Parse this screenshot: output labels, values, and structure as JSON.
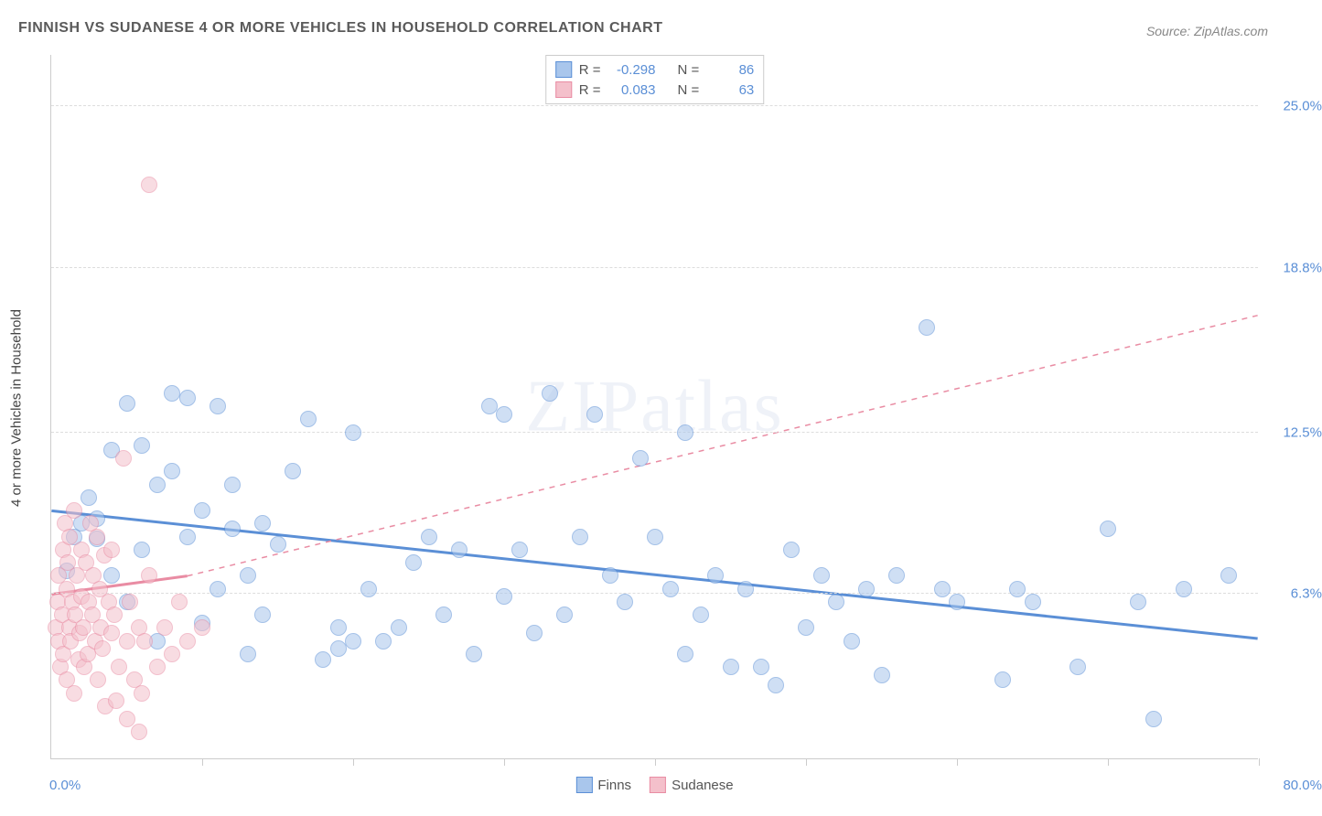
{
  "title": "FINNISH VS SUDANESE 4 OR MORE VEHICLES IN HOUSEHOLD CORRELATION CHART",
  "source": "Source: ZipAtlas.com",
  "watermark": "ZIPatlas",
  "yaxis_label": "4 or more Vehicles in Household",
  "chart": {
    "type": "scatter",
    "background_color": "#ffffff",
    "grid_color": "#dddddd",
    "axis_color": "#cccccc",
    "label_color": "#5b8fd6",
    "text_color": "#444444",
    "xlim": [
      0,
      80
    ],
    "ylim": [
      0,
      27
    ],
    "xtick_positions": [
      0,
      10,
      20,
      30,
      40,
      50,
      60,
      70,
      80
    ],
    "xaxis_min_label": "0.0%",
    "xaxis_max_label": "80.0%",
    "yticks": [
      {
        "value": 6.3,
        "label": "6.3%"
      },
      {
        "value": 12.5,
        "label": "12.5%"
      },
      {
        "value": 18.8,
        "label": "18.8%"
      },
      {
        "value": 25.0,
        "label": "25.0%"
      }
    ],
    "point_radius": 9,
    "point_opacity": 0.55,
    "series": [
      {
        "name": "Finns",
        "fill_color": "#a9c6ec",
        "stroke_color": "#5b8fd6",
        "r_label": "R =",
        "r_value": "-0.298",
        "n_label": "N =",
        "n_value": "86",
        "regression": {
          "solid": {
            "x1": 0,
            "y1": 9.5,
            "x2": 80,
            "y2": 4.6,
            "width": 3
          },
          "dashed": null
        },
        "points": [
          [
            1,
            7.2
          ],
          [
            1.5,
            8.5
          ],
          [
            2,
            9.0
          ],
          [
            2.5,
            10.0
          ],
          [
            3,
            9.2
          ],
          [
            3,
            8.4
          ],
          [
            4,
            7.0
          ],
          [
            4,
            11.8
          ],
          [
            5,
            6.0
          ],
          [
            5,
            13.6
          ],
          [
            6,
            12.0
          ],
          [
            6,
            8.0
          ],
          [
            7,
            4.5
          ],
          [
            7,
            10.5
          ],
          [
            8,
            11.0
          ],
          [
            8,
            14.0
          ],
          [
            9,
            8.5
          ],
          [
            9,
            13.8
          ],
          [
            10,
            5.2
          ],
          [
            10,
            9.5
          ],
          [
            11,
            13.5
          ],
          [
            11,
            6.5
          ],
          [
            12,
            8.8
          ],
          [
            12,
            10.5
          ],
          [
            13,
            7.0
          ],
          [
            13,
            4.0
          ],
          [
            14,
            5.5
          ],
          [
            14,
            9.0
          ],
          [
            15,
            8.2
          ],
          [
            16,
            11.0
          ],
          [
            17,
            13.0
          ],
          [
            18,
            3.8
          ],
          [
            19,
            4.2
          ],
          [
            19,
            5.0
          ],
          [
            20,
            4.5
          ],
          [
            20,
            12.5
          ],
          [
            21,
            6.5
          ],
          [
            22,
            4.5
          ],
          [
            23,
            5.0
          ],
          [
            24,
            7.5
          ],
          [
            25,
            8.5
          ],
          [
            26,
            5.5
          ],
          [
            27,
            8.0
          ],
          [
            28,
            4.0
          ],
          [
            29,
            13.5
          ],
          [
            30,
            13.2
          ],
          [
            30,
            6.2
          ],
          [
            31,
            8.0
          ],
          [
            32,
            4.8
          ],
          [
            33,
            14.0
          ],
          [
            34,
            5.5
          ],
          [
            35,
            8.5
          ],
          [
            36,
            13.2
          ],
          [
            37,
            7.0
          ],
          [
            38,
            6.0
          ],
          [
            39,
            11.5
          ],
          [
            40,
            8.5
          ],
          [
            41,
            6.5
          ],
          [
            42,
            4.0
          ],
          [
            42,
            12.5
          ],
          [
            43,
            5.5
          ],
          [
            44,
            7.0
          ],
          [
            45,
            3.5
          ],
          [
            46,
            6.5
          ],
          [
            47,
            3.5
          ],
          [
            48,
            2.8
          ],
          [
            49,
            8.0
          ],
          [
            50,
            5.0
          ],
          [
            51,
            7.0
          ],
          [
            52,
            6.0
          ],
          [
            53,
            4.5
          ],
          [
            54,
            6.5
          ],
          [
            55,
            3.2
          ],
          [
            56,
            7.0
          ],
          [
            58,
            16.5
          ],
          [
            59,
            6.5
          ],
          [
            60,
            6.0
          ],
          [
            63,
            3.0
          ],
          [
            64,
            6.5
          ],
          [
            65,
            6.0
          ],
          [
            68,
            3.5
          ],
          [
            70,
            8.8
          ],
          [
            72,
            6.0
          ],
          [
            73,
            1.5
          ],
          [
            75,
            6.5
          ],
          [
            78,
            7.0
          ]
        ]
      },
      {
        "name": "Sudanese",
        "fill_color": "#f4c0cb",
        "stroke_color": "#e98ca3",
        "r_label": "R =",
        "r_value": "0.083",
        "n_label": "N =",
        "n_value": "63",
        "regression": {
          "solid": {
            "x1": 0,
            "y1": 6.3,
            "x2": 9,
            "y2": 7.0,
            "width": 3
          },
          "dashed": {
            "x1": 9,
            "y1": 7.0,
            "x2": 80,
            "y2": 17.0,
            "width": 1.5
          }
        },
        "points": [
          [
            0.3,
            5.0
          ],
          [
            0.4,
            6.0
          ],
          [
            0.5,
            4.5
          ],
          [
            0.5,
            7.0
          ],
          [
            0.6,
            3.5
          ],
          [
            0.7,
            5.5
          ],
          [
            0.8,
            8.0
          ],
          [
            0.8,
            4.0
          ],
          [
            0.9,
            9.0
          ],
          [
            1.0,
            6.5
          ],
          [
            1.0,
            3.0
          ],
          [
            1.1,
            7.5
          ],
          [
            1.2,
            5.0
          ],
          [
            1.2,
            8.5
          ],
          [
            1.3,
            4.5
          ],
          [
            1.4,
            6.0
          ],
          [
            1.5,
            9.5
          ],
          [
            1.5,
            2.5
          ],
          [
            1.6,
            5.5
          ],
          [
            1.7,
            7.0
          ],
          [
            1.8,
            3.8
          ],
          [
            1.9,
            4.8
          ],
          [
            2.0,
            6.2
          ],
          [
            2.0,
            8.0
          ],
          [
            2.1,
            5.0
          ],
          [
            2.2,
            3.5
          ],
          [
            2.3,
            7.5
          ],
          [
            2.4,
            4.0
          ],
          [
            2.5,
            6.0
          ],
          [
            2.6,
            9.0
          ],
          [
            2.7,
            5.5
          ],
          [
            2.8,
            7.0
          ],
          [
            2.9,
            4.5
          ],
          [
            3.0,
            8.5
          ],
          [
            3.1,
            3.0
          ],
          [
            3.2,
            6.5
          ],
          [
            3.3,
            5.0
          ],
          [
            3.4,
            4.2
          ],
          [
            3.5,
            7.8
          ],
          [
            3.6,
            2.0
          ],
          [
            3.8,
            6.0
          ],
          [
            4.0,
            4.8
          ],
          [
            4.0,
            8.0
          ],
          [
            4.2,
            5.5
          ],
          [
            4.3,
            2.2
          ],
          [
            4.5,
            3.5
          ],
          [
            4.8,
            11.5
          ],
          [
            5.0,
            4.5
          ],
          [
            5.0,
            1.5
          ],
          [
            5.2,
            6.0
          ],
          [
            5.5,
            3.0
          ],
          [
            5.8,
            5.0
          ],
          [
            5.8,
            1.0
          ],
          [
            6.0,
            2.5
          ],
          [
            6.2,
            4.5
          ],
          [
            6.5,
            7.0
          ],
          [
            6.5,
            22.0
          ],
          [
            7.0,
            3.5
          ],
          [
            7.5,
            5.0
          ],
          [
            8.0,
            4.0
          ],
          [
            8.5,
            6.0
          ],
          [
            9.0,
            4.5
          ],
          [
            10.0,
            5.0
          ]
        ]
      }
    ]
  }
}
